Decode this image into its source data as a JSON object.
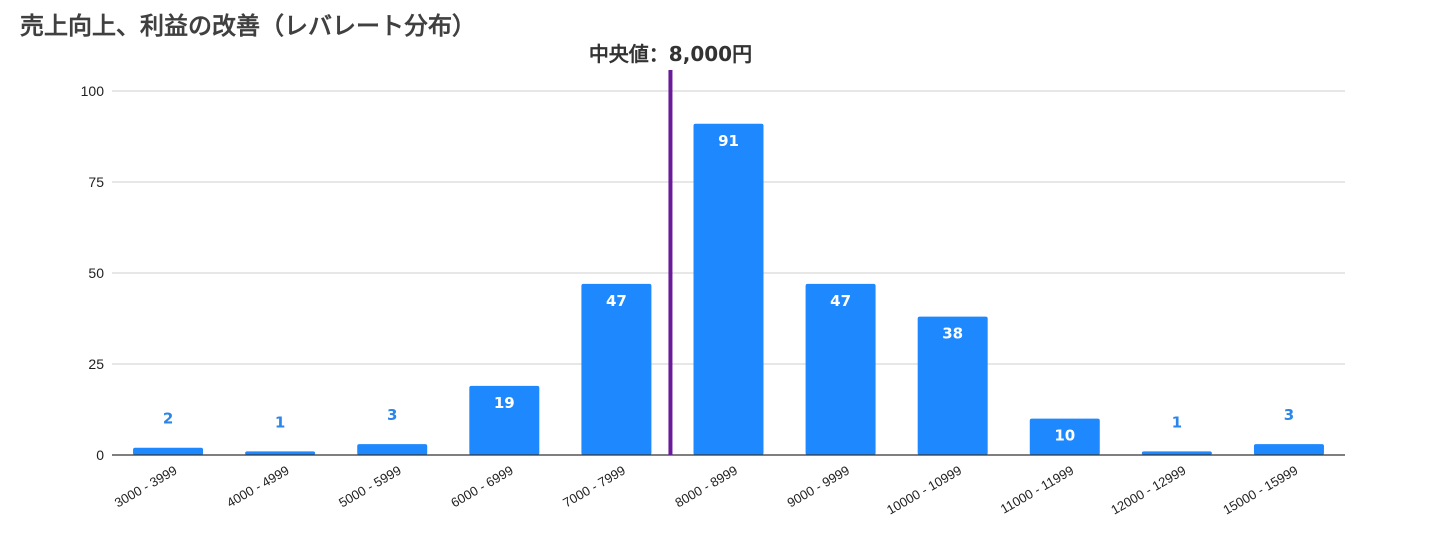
{
  "chart_data": {
    "type": "bar",
    "title": "売上向上、利益の改善（レバレート分布）",
    "xlabel": "",
    "ylabel": "",
    "categories": [
      "3000 - 3999",
      "4000 - 4999",
      "5000 - 5999",
      "6000 - 6999",
      "7000 - 7999",
      "8000 - 8999",
      "9000 - 9999",
      "10000 - 10999",
      "11000 - 11999",
      "12000 - 12999",
      "15000 - 15999"
    ],
    "values": [
      2,
      1,
      3,
      19,
      47,
      91,
      47,
      38,
      10,
      1,
      3
    ],
    "ylim": [
      0,
      100
    ],
    "yticks": [
      0,
      25,
      50,
      75,
      100
    ],
    "grid": true,
    "legend": "none",
    "bar_color": "#1e88ff",
    "median_line": {
      "label": "中央値：8,000円",
      "x": 8000,
      "color": "#6a1b9a"
    }
  }
}
